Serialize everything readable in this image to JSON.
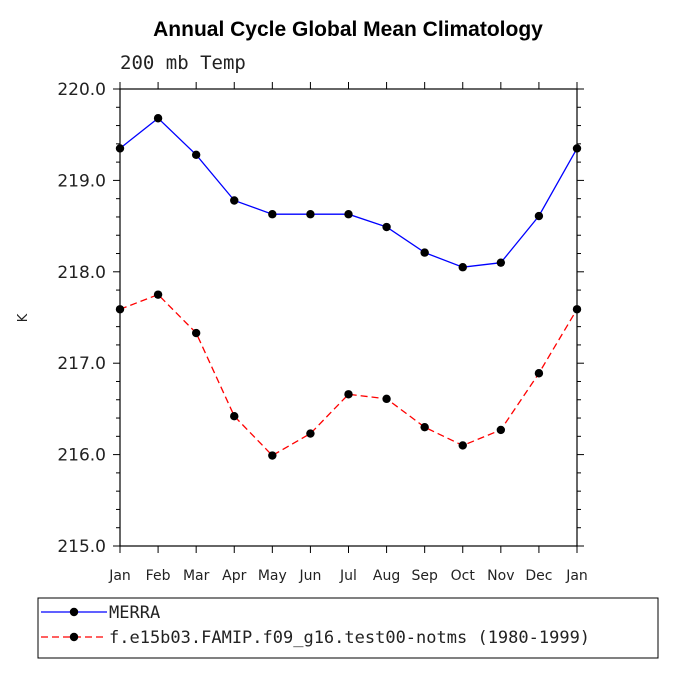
{
  "chart_data": {
    "type": "line",
    "title": "Annual Cycle Global Mean Climatology",
    "subtitle": "200 mb Temp",
    "ylabel": "K",
    "xlabel": "",
    "categories": [
      "Jan",
      "Feb",
      "Mar",
      "Apr",
      "May",
      "Jun",
      "Jul",
      "Aug",
      "Sep",
      "Oct",
      "Nov",
      "Dec",
      "Jan"
    ],
    "ylim": [
      215.0,
      220.0
    ],
    "yticks": [
      "215.0",
      "216.0",
      "217.0",
      "218.0",
      "219.0",
      "220.0"
    ],
    "grid": false,
    "legend_position": "bottom",
    "series": [
      {
        "name": "MERRA",
        "color": "#0000ff",
        "dash": "solid",
        "values": [
          219.35,
          219.68,
          219.28,
          218.78,
          218.63,
          218.63,
          218.63,
          218.49,
          218.21,
          218.05,
          218.1,
          218.61,
          219.35
        ]
      },
      {
        "name": "f.e15b03.FAMIP.f09_g16.test00-notms (1980-1999)",
        "color": "#ff0000",
        "dash": "dashed",
        "values": [
          217.59,
          217.75,
          217.33,
          216.42,
          215.99,
          216.23,
          216.66,
          216.61,
          216.3,
          216.1,
          216.27,
          216.89,
          217.59
        ]
      }
    ]
  }
}
